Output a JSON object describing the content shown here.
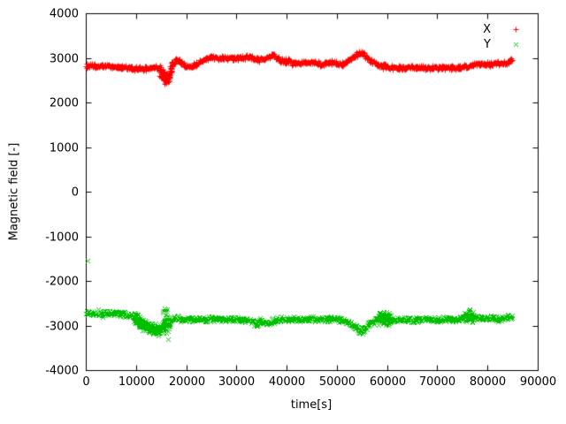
{
  "chart_data": {
    "type": "scatter",
    "title": "",
    "xlabel": "time[s]",
    "ylabel": "Magnetic field [-]",
    "xlim": [
      0,
      90000
    ],
    "ylim": [
      -4000,
      4000
    ],
    "xticks": [
      0,
      10000,
      20000,
      30000,
      40000,
      50000,
      60000,
      70000,
      80000,
      90000
    ],
    "yticks": [
      -4000,
      -3000,
      -2000,
      -1000,
      0,
      1000,
      2000,
      3000,
      4000
    ],
    "grid": false,
    "legend_position": "top-right-inside",
    "series": [
      {
        "name": "X",
        "color": "#ff0000",
        "marker": "+",
        "base_noise": 60,
        "points": [
          [
            0,
            2820
          ],
          [
            2000,
            2810
          ],
          [
            4000,
            2820
          ],
          [
            6000,
            2800
          ],
          [
            8000,
            2790
          ],
          [
            9000,
            2770
          ],
          [
            10000,
            2760
          ],
          [
            11000,
            2750
          ],
          [
            12000,
            2760
          ],
          [
            13000,
            2780
          ],
          [
            14000,
            2800
          ],
          [
            15000,
            2700
          ],
          [
            15500,
            2600
          ],
          [
            16000,
            2520
          ],
          [
            16500,
            2600
          ],
          [
            17000,
            2780
          ],
          [
            17500,
            2900
          ],
          [
            18000,
            2950
          ],
          [
            18500,
            2920
          ],
          [
            19000,
            2890
          ],
          [
            20000,
            2840
          ],
          [
            21000,
            2810
          ],
          [
            22000,
            2860
          ],
          [
            23000,
            2950
          ],
          [
            24000,
            3000
          ],
          [
            25000,
            3010
          ],
          [
            26000,
            3010
          ],
          [
            27000,
            3010
          ],
          [
            28000,
            3010
          ],
          [
            29000,
            3000
          ],
          [
            30000,
            3000
          ],
          [
            31000,
            3000
          ],
          [
            32000,
            3010
          ],
          [
            33000,
            3000
          ],
          [
            34000,
            2970
          ],
          [
            35000,
            2950
          ],
          [
            36000,
            3000
          ],
          [
            37000,
            3050
          ],
          [
            37500,
            3060
          ],
          [
            38000,
            3000
          ],
          [
            39000,
            2920
          ],
          [
            40000,
            2950
          ],
          [
            41000,
            2900
          ],
          [
            42000,
            2870
          ],
          [
            43000,
            2900
          ],
          [
            44000,
            2920
          ],
          [
            45000,
            2900
          ],
          [
            46000,
            2880
          ],
          [
            47000,
            2850
          ],
          [
            48000,
            2880
          ],
          [
            49000,
            2900
          ],
          [
            50000,
            2870
          ],
          [
            51000,
            2850
          ],
          [
            52000,
            2900
          ],
          [
            53000,
            2990
          ],
          [
            54000,
            3080
          ],
          [
            54500,
            3110
          ],
          [
            55000,
            3120
          ],
          [
            55500,
            3080
          ],
          [
            56000,
            3000
          ],
          [
            57000,
            2920
          ],
          [
            58000,
            2860
          ],
          [
            59000,
            2830
          ],
          [
            60000,
            2800
          ],
          [
            61000,
            2790
          ],
          [
            62000,
            2780
          ],
          [
            64000,
            2780
          ],
          [
            66000,
            2780
          ],
          [
            68000,
            2780
          ],
          [
            70000,
            2780
          ],
          [
            72000,
            2780
          ],
          [
            74000,
            2780
          ],
          [
            75000,
            2790
          ],
          [
            76000,
            2810
          ],
          [
            77000,
            2840
          ],
          [
            78000,
            2850
          ],
          [
            79000,
            2860
          ],
          [
            80000,
            2860
          ],
          [
            81000,
            2890
          ],
          [
            82000,
            2870
          ],
          [
            83000,
            2880
          ],
          [
            84000,
            2900
          ],
          [
            85000,
            2930
          ]
        ],
        "bursts": [
          [
            8500,
            13500,
            70
          ],
          [
            14600,
            17200,
            180
          ],
          [
            17500,
            19500,
            85
          ],
          [
            38500,
            41500,
            95
          ],
          [
            53800,
            56500,
            75
          ],
          [
            58000,
            60200,
            70
          ],
          [
            79800,
            82200,
            85
          ]
        ],
        "outliers": [
          [
            84800,
            2990
          ]
        ]
      },
      {
        "name": "Y",
        "color": "#00c000",
        "marker": "x",
        "base_noise": 70,
        "points": [
          [
            0,
            -2720
          ],
          [
            2000,
            -2720
          ],
          [
            4000,
            -2730
          ],
          [
            6000,
            -2720
          ],
          [
            8000,
            -2740
          ],
          [
            9000,
            -2760
          ],
          [
            10000,
            -2850
          ],
          [
            11000,
            -2950
          ],
          [
            12000,
            -3030
          ],
          [
            13000,
            -3060
          ],
          [
            14000,
            -3100
          ],
          [
            14500,
            -3120
          ],
          [
            15000,
            -3060
          ],
          [
            15500,
            -2980
          ],
          [
            16000,
            -2900
          ],
          [
            16500,
            -2950
          ],
          [
            17000,
            -2870
          ],
          [
            18000,
            -2820
          ],
          [
            19000,
            -2850
          ],
          [
            20000,
            -2860
          ],
          [
            21000,
            -2850
          ],
          [
            22000,
            -2860
          ],
          [
            23000,
            -2850
          ],
          [
            24000,
            -2860
          ],
          [
            25000,
            -2850
          ],
          [
            26000,
            -2860
          ],
          [
            27000,
            -2850
          ],
          [
            28000,
            -2860
          ],
          [
            29000,
            -2870
          ],
          [
            30000,
            -2860
          ],
          [
            31000,
            -2870
          ],
          [
            32000,
            -2890
          ],
          [
            33000,
            -2900
          ],
          [
            34000,
            -2940
          ],
          [
            35000,
            -2900
          ],
          [
            36000,
            -2940
          ],
          [
            37000,
            -2900
          ],
          [
            38000,
            -2870
          ],
          [
            39000,
            -2850
          ],
          [
            40000,
            -2870
          ],
          [
            41000,
            -2850
          ],
          [
            42000,
            -2870
          ],
          [
            43000,
            -2850
          ],
          [
            44000,
            -2860
          ],
          [
            45000,
            -2850
          ],
          [
            46000,
            -2860
          ],
          [
            47000,
            -2850
          ],
          [
            48000,
            -2860
          ],
          [
            49000,
            -2850
          ],
          [
            50000,
            -2860
          ],
          [
            51000,
            -2870
          ],
          [
            52000,
            -2900
          ],
          [
            53000,
            -2990
          ],
          [
            54000,
            -3080
          ],
          [
            54500,
            -3110
          ],
          [
            55000,
            -3120
          ],
          [
            55500,
            -3080
          ],
          [
            56000,
            -3000
          ],
          [
            57000,
            -2920
          ],
          [
            58000,
            -2860
          ],
          [
            59000,
            -2810
          ],
          [
            60000,
            -2850
          ],
          [
            61000,
            -2870
          ],
          [
            62000,
            -2870
          ],
          [
            64000,
            -2870
          ],
          [
            66000,
            -2870
          ],
          [
            68000,
            -2860
          ],
          [
            70000,
            -2860
          ],
          [
            71000,
            -2850
          ],
          [
            72000,
            -2850
          ],
          [
            73000,
            -2850
          ],
          [
            74000,
            -2850
          ],
          [
            75000,
            -2840
          ],
          [
            76000,
            -2760
          ],
          [
            77000,
            -2800
          ],
          [
            78000,
            -2820
          ],
          [
            79000,
            -2830
          ],
          [
            80000,
            -2830
          ],
          [
            81000,
            -2820
          ],
          [
            82000,
            -2850
          ],
          [
            83000,
            -2830
          ],
          [
            84000,
            -2810
          ],
          [
            85000,
            -2800
          ]
        ],
        "bursts": [
          [
            0,
            8000,
            90
          ],
          [
            9500,
            14800,
            150
          ],
          [
            15300,
            16700,
            400
          ],
          [
            33200,
            35600,
            110
          ],
          [
            53800,
            56500,
            110
          ],
          [
            58300,
            60800,
            170
          ],
          [
            75300,
            77200,
            160
          ]
        ],
        "outliers": [
          [
            300,
            -1550
          ]
        ]
      }
    ]
  }
}
